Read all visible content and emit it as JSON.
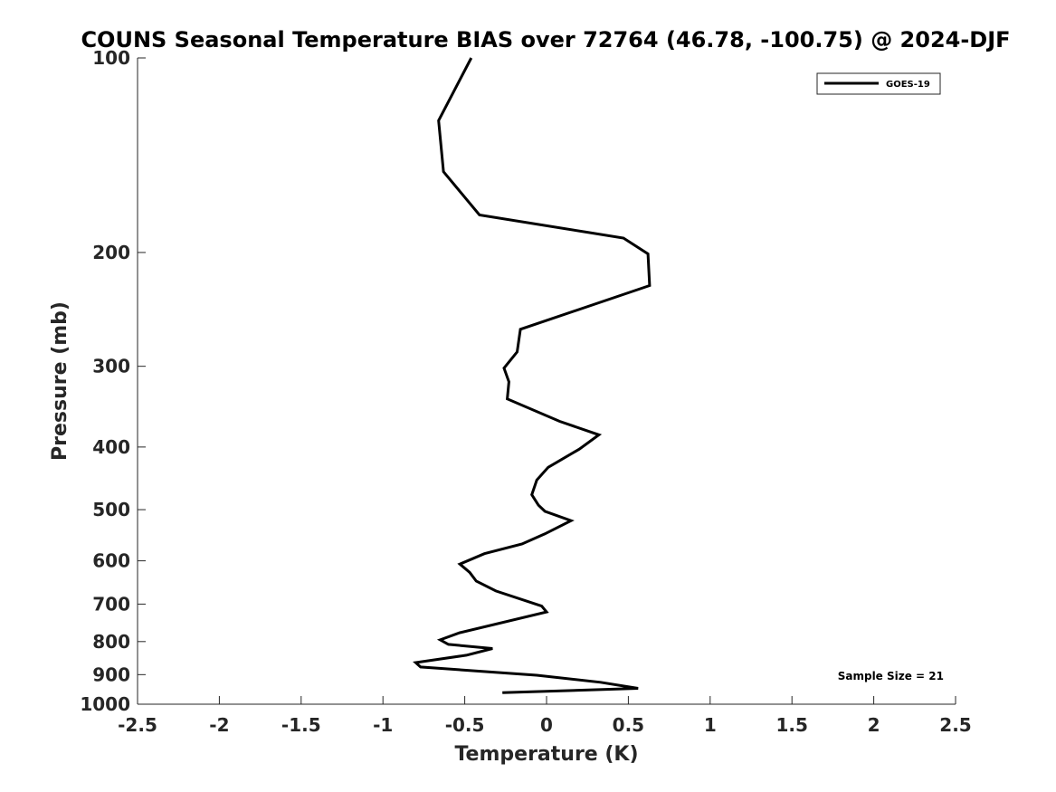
{
  "chart_data": {
    "type": "line",
    "title": "COUNS Seasonal Temperature BIAS over 72764 (46.78, -100.75) @ 2024-DJF",
    "xlabel": "Temperature (K)",
    "ylabel": "Pressure (mb)",
    "xlim": [
      -2.5,
      2.5
    ],
    "ylim": [
      100,
      1000
    ],
    "yscale": "log",
    "y_reversed": true,
    "xticks": [
      -2.5,
      -2,
      -1.5,
      -1,
      -0.5,
      0,
      0.5,
      1,
      1.5,
      2,
      2.5
    ],
    "xtick_labels": [
      "-2.5",
      "-2",
      "-1.5",
      "-1",
      "-0.5",
      "0",
      "0.5",
      "1",
      "1.5",
      "2",
      "2.5"
    ],
    "yticks": [
      100,
      200,
      300,
      400,
      500,
      600,
      700,
      800,
      900,
      1000
    ],
    "ytick_labels": [
      "100",
      "200",
      "300",
      "400",
      "500",
      "600",
      "700",
      "800",
      "900",
      "1000"
    ],
    "grid": false,
    "legend": {
      "position": "top-right",
      "entries": [
        "GOES-19"
      ]
    },
    "annotation": "Sample Size = 21",
    "series": [
      {
        "name": "GOES-19",
        "color": "#000000",
        "points": [
          {
            "x": -0.46,
            "p": 100
          },
          {
            "x": -0.66,
            "p": 125
          },
          {
            "x": -0.63,
            "p": 150
          },
          {
            "x": -0.41,
            "p": 175
          },
          {
            "x": 0.47,
            "p": 190
          },
          {
            "x": 0.62,
            "p": 201
          },
          {
            "x": 0.63,
            "p": 225
          },
          {
            "x": -0.16,
            "p": 263
          },
          {
            "x": -0.18,
            "p": 285
          },
          {
            "x": -0.26,
            "p": 302
          },
          {
            "x": -0.23,
            "p": 317
          },
          {
            "x": -0.24,
            "p": 337
          },
          {
            "x": 0.08,
            "p": 365
          },
          {
            "x": 0.32,
            "p": 383
          },
          {
            "x": 0.2,
            "p": 403
          },
          {
            "x": 0.01,
            "p": 430
          },
          {
            "x": -0.06,
            "p": 450
          },
          {
            "x": -0.09,
            "p": 474
          },
          {
            "x": -0.05,
            "p": 492
          },
          {
            "x": -0.01,
            "p": 503
          },
          {
            "x": 0.15,
            "p": 520
          },
          {
            "x": -0.01,
            "p": 545
          },
          {
            "x": -0.15,
            "p": 565
          },
          {
            "x": -0.38,
            "p": 585
          },
          {
            "x": -0.53,
            "p": 607
          },
          {
            "x": -0.47,
            "p": 625
          },
          {
            "x": -0.43,
            "p": 645
          },
          {
            "x": -0.31,
            "p": 668
          },
          {
            "x": -0.03,
            "p": 705
          },
          {
            "x": 0.0,
            "p": 720
          },
          {
            "x": -0.53,
            "p": 775
          },
          {
            "x": -0.65,
            "p": 795
          },
          {
            "x": -0.6,
            "p": 808
          },
          {
            "x": -0.33,
            "p": 820
          },
          {
            "x": -0.49,
            "p": 840
          },
          {
            "x": -0.8,
            "p": 862
          },
          {
            "x": -0.77,
            "p": 876
          },
          {
            "x": -0.06,
            "p": 902
          },
          {
            "x": 0.33,
            "p": 925
          },
          {
            "x": 0.56,
            "p": 945
          },
          {
            "x": -0.27,
            "p": 960
          }
        ]
      }
    ]
  }
}
